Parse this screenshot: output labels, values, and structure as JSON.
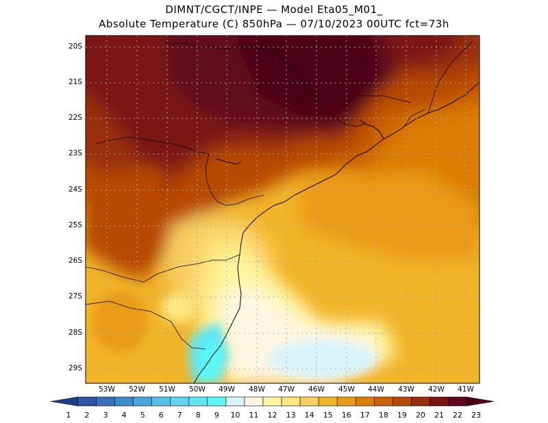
{
  "header": {
    "line1": "DIMNT/CGCT/INPE —  Model Eta05_M01_",
    "line2": "Absolute Temperature (C) 850hPa —  07/10/2023 00UTC fct=73h"
  },
  "map": {
    "lat_labels": [
      "20S",
      "21S",
      "22S",
      "23S",
      "24S",
      "25S",
      "26S",
      "27S",
      "28S",
      "29S"
    ],
    "lon_labels": [
      "53W",
      "52W",
      "51W",
      "50W",
      "49W",
      "48W",
      "47W",
      "46W",
      "45W",
      "44W",
      "43W",
      "42W",
      "41W"
    ]
  },
  "colorbar": {
    "labels": [
      "1",
      "2",
      "3",
      "4",
      "5",
      "6",
      "7",
      "8",
      "9",
      "10",
      "11",
      "12",
      "13",
      "14",
      "15",
      "16",
      "17",
      "18",
      "19",
      "20",
      "21",
      "22",
      "23"
    ],
    "colors": [
      "#1e3c8c",
      "#2a55a8",
      "#3470bc",
      "#3c8ccc",
      "#48a6dc",
      "#56c0e8",
      "#60d4ee",
      "#5ee6f2",
      "#5cf8f8",
      "#d8f4fa",
      "#fff6e2",
      "#fff5a0",
      "#fde580",
      "#f9cd60",
      "#f2b428",
      "#e99a12",
      "#dc7c06",
      "#cc6004",
      "#b84806",
      "#9a2e0a",
      "#7a1212",
      "#62081e",
      "#4a0614"
    ]
  }
}
